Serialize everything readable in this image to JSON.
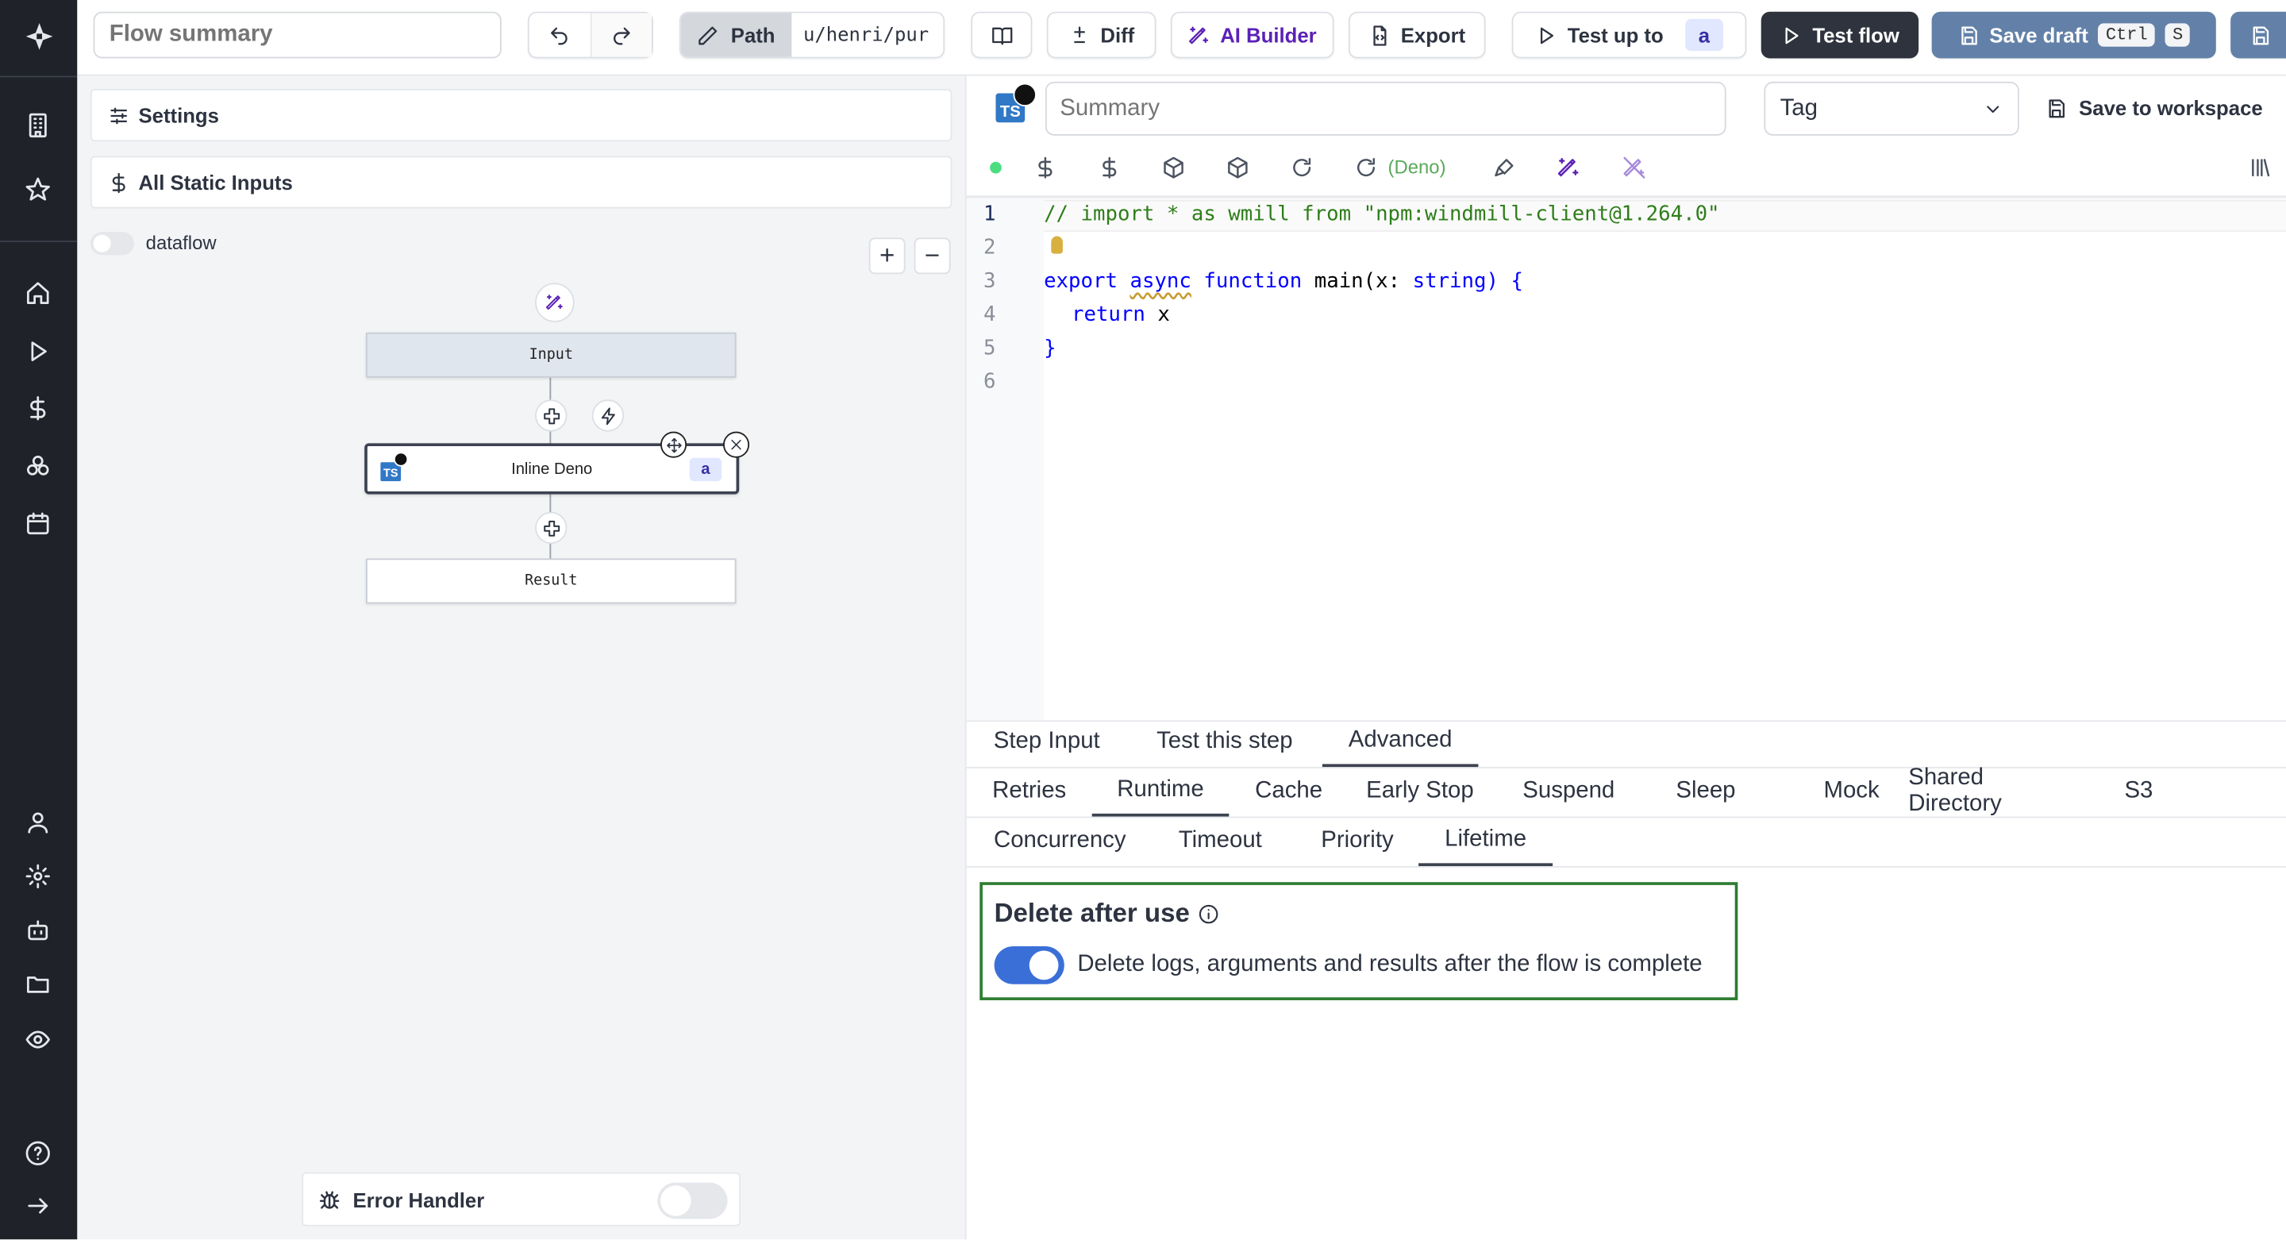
{
  "colors": {
    "sidebar": "#1f2229",
    "accent_blue": "#6381a8",
    "dark_button": "#2f333d",
    "ai_purple": "#5b21b6",
    "toggle_on": "#3b6fd8",
    "success_border": "#2e7d32",
    "deno_green": "#5aaa5a"
  },
  "sidebar": {
    "icons": [
      "windmill-logo-icon",
      "building-icon",
      "star-icon",
      "home-icon",
      "play-icon",
      "dollar-icon",
      "resources-icon",
      "calendar-icon",
      "user-icon",
      "gear-icon",
      "bot-icon",
      "folder-icon",
      "eye-icon",
      "help-icon",
      "arrow-right-icon"
    ]
  },
  "topbar": {
    "summary_placeholder": "Flow summary",
    "path_label": "Path",
    "path_value": "u/henri/pur",
    "diff": "Diff",
    "ai_builder": "AI Builder",
    "export": "Export",
    "test_up_to": "Test up to",
    "test_up_to_badge": "a",
    "test_flow": "Test flow",
    "save_draft": "Save draft",
    "kbd_ctrl": "Ctrl",
    "kbd_s": "S"
  },
  "left": {
    "settings": "Settings",
    "static_inputs": "All Static Inputs",
    "dataflow_label": "dataflow",
    "dataflow_on": false,
    "nodes": {
      "input": "Input",
      "step": "Inline Deno",
      "step_badge": "a",
      "result": "Result"
    },
    "error_handler": "Error Handler",
    "error_handler_on": false
  },
  "right": {
    "summary_placeholder": "Summary",
    "tag_placeholder": "Tag",
    "save_to_workspace": "Save to workspace",
    "runtime_label": "(Deno)",
    "code_lines": [
      "1",
      "2",
      "3",
      "4",
      "5",
      "6"
    ],
    "code": {
      "l1": "// import * as wmill from \"npm:windmill-client@1.264.0\"",
      "export": "export",
      "async": "async",
      "function": "function",
      "main": " main(",
      "x": "x: ",
      "string": "string",
      "close": ") {",
      "return": "return",
      "ret_x": " x",
      "brace": "}"
    },
    "tabs": [
      "Step Input",
      "Test this step",
      "Advanced"
    ],
    "active_tab": "Advanced",
    "subtabs": [
      "Retries",
      "Runtime",
      "Cache",
      "Early Stop",
      "Suspend",
      "Sleep",
      "Mock",
      "Shared Directory",
      "S3"
    ],
    "active_subtab": "Runtime",
    "subtabs2": [
      "Concurrency",
      "Timeout",
      "Priority",
      "Lifetime"
    ],
    "active_subtab2": "Lifetime",
    "lifetime": {
      "title": "Delete after use",
      "toggle_label": "Delete logs, arguments and results after the flow is complete",
      "enabled": true
    }
  }
}
